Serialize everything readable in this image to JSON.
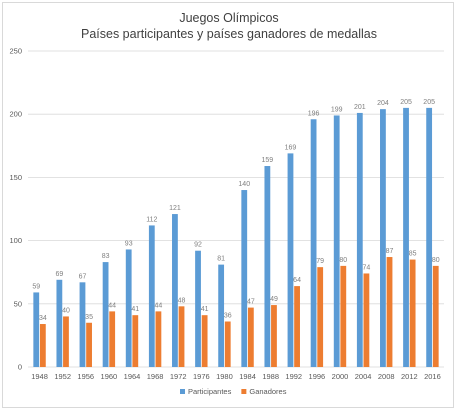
{
  "chart_data": {
    "type": "bar",
    "title": "Juegos Olímpicos",
    "subtitle": "Países participantes y países ganadores de medallas",
    "xlabel": "",
    "ylabel": "",
    "ylim": [
      0,
      250
    ],
    "yticks": [
      0,
      50,
      100,
      150,
      200,
      250
    ],
    "grid": true,
    "legend_position": "bottom",
    "categories": [
      "1948",
      "1952",
      "1956",
      "1960",
      "1964",
      "1968",
      "1972",
      "1976",
      "1980",
      "1984",
      "1988",
      "1992",
      "1996",
      "2000",
      "2004",
      "2008",
      "2012",
      "2016"
    ],
    "series": [
      {
        "name": "Participantes",
        "color": "#5B9BD5",
        "values": [
          59,
          69,
          67,
          83,
          93,
          112,
          121,
          92,
          81,
          140,
          159,
          169,
          196,
          199,
          201,
          204,
          205,
          205
        ]
      },
      {
        "name": "Ganadores",
        "color": "#ED7D31",
        "values": [
          34,
          40,
          35,
          44,
          41,
          44,
          48,
          41,
          36,
          47,
          49,
          64,
          79,
          80,
          74,
          87,
          85,
          80
        ]
      }
    ]
  }
}
